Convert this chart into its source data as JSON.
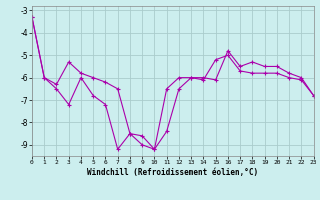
{
  "line1": [
    -3.3,
    -6.0,
    -6.3,
    -5.3,
    -5.8,
    -6.0,
    -6.2,
    -6.5,
    -8.5,
    -8.6,
    -9.2,
    -6.5,
    -6.0,
    -6.0,
    -6.0,
    -6.1,
    -4.8,
    -5.5,
    -5.3,
    -5.5,
    -5.5,
    -5.8,
    -6.0,
    -6.8
  ],
  "line2": [
    -3.3,
    -6.0,
    -6.5,
    -7.2,
    -6.0,
    -6.8,
    -7.2,
    -9.2,
    -8.5,
    -9.0,
    -9.2,
    -8.4,
    -6.5,
    -6.0,
    -6.1,
    -5.2,
    -5.0,
    -5.7,
    -5.8,
    -5.8,
    -5.8,
    -6.0,
    -6.1,
    -6.8
  ],
  "xlim": [
    0,
    23
  ],
  "ylim": [
    -9.5,
    -2.8
  ],
  "yticks": [
    -9,
    -8,
    -7,
    -6,
    -5,
    -4,
    -3
  ],
  "xticks": [
    0,
    1,
    2,
    3,
    4,
    5,
    6,
    7,
    8,
    9,
    10,
    11,
    12,
    13,
    14,
    15,
    16,
    17,
    18,
    19,
    20,
    21,
    22,
    23
  ],
  "xlabel": "Windchill (Refroidissement éolien,°C)",
  "line_color": "#aa00aa",
  "bg_color": "#cceeee",
  "grid_color": "#aacccc",
  "marker": "+"
}
